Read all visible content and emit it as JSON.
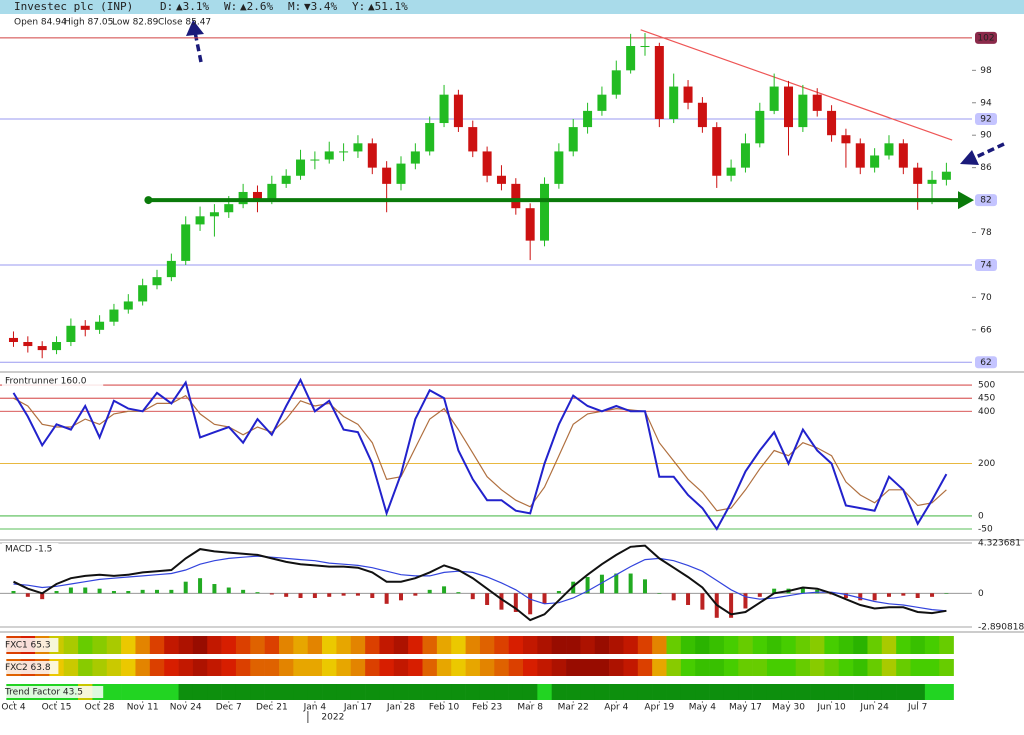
{
  "header": {
    "title": "Investec plc (INP)",
    "changes": [
      {
        "label": "D:",
        "value": "▲3.1%",
        "color": "#1a8a1a"
      },
      {
        "label": "W:",
        "value": "▲2.6%",
        "color": "#1a8a1a"
      },
      {
        "label": "M:",
        "value": "▼3.4%",
        "color": "#cc1111"
      },
      {
        "label": "Y:",
        "value": "▲51.1%",
        "color": "#1a8a1a"
      }
    ],
    "ohlc": [
      "Open 84.94",
      "High 87.05",
      "Low 82.89",
      "Close 85.47"
    ]
  },
  "chart_data": [
    {
      "type": "candlestick",
      "xlim": [
        -0.8,
        65.6
      ],
      "ylim": [
        60.8,
        104.7
      ],
      "yticks": [
        102,
        98,
        94,
        92,
        90,
        86,
        82,
        78,
        74,
        70,
        66,
        62
      ],
      "up_color": "#22bb22",
      "down_color": "#cc1111",
      "open": [
        65,
        64.5,
        64,
        63.5,
        64.5,
        66.5,
        66,
        67,
        68.5,
        69.5,
        71.5,
        72.5,
        74.5,
        79,
        80,
        80.5,
        81.5,
        83,
        82,
        84,
        85,
        87,
        87,
        88,
        88,
        89,
        86,
        84,
        86.5,
        88,
        91.5,
        95,
        91,
        88,
        85,
        84,
        81,
        77,
        84,
        88,
        91,
        93,
        95,
        98,
        101,
        101,
        92,
        96,
        94,
        91,
        85,
        86,
        89,
        93,
        96,
        91,
        95,
        93,
        90,
        89,
        86,
        87.5,
        89,
        86,
        84,
        84.5
      ],
      "high": [
        65.8,
        65.2,
        64.6,
        65.2,
        67.4,
        67.2,
        67.8,
        69.2,
        70.4,
        72.3,
        73.4,
        75.4,
        80,
        81.2,
        81.5,
        82.5,
        84,
        83.8,
        85,
        85.8,
        88.2,
        88,
        89.2,
        89,
        90,
        89.6,
        86.8,
        87.4,
        89,
        92.3,
        96.2,
        95.6,
        91.8,
        88.6,
        86.3,
        84.7,
        81.6,
        84.8,
        89,
        92,
        94,
        96,
        99.2,
        102.5,
        102.6,
        101.4,
        97.6,
        96.8,
        94.7,
        91.6,
        87,
        90.2,
        94,
        97.6,
        96.7,
        96.2,
        95.8,
        93.7,
        90.8,
        89.6,
        88.4,
        90,
        89.5,
        86.6,
        85.6,
        86.6
      ],
      "low": [
        63.9,
        63.2,
        62.5,
        63,
        64,
        65.2,
        65.5,
        66.5,
        68,
        69,
        71,
        72,
        74,
        78.2,
        77.5,
        79.8,
        81,
        80.5,
        81.5,
        83.5,
        84.5,
        85.8,
        86.5,
        86.8,
        87.2,
        85.2,
        80.5,
        83.2,
        85.8,
        87.5,
        91,
        90.4,
        87.3,
        84.2,
        83.2,
        80.2,
        74.6,
        76.3,
        83.4,
        87.4,
        90.2,
        92.4,
        94.5,
        97.6,
        99.8,
        91,
        91.5,
        93.2,
        90.3,
        83.5,
        84.3,
        85.4,
        88.5,
        92.6,
        87.5,
        90.4,
        92.3,
        89.2,
        86,
        85.2,
        85.4,
        87,
        85.2,
        80.8,
        81.5,
        83.8
      ],
      "close": [
        64.5,
        64,
        63.5,
        64.5,
        66.5,
        66,
        67,
        68.5,
        69.5,
        71.5,
        72.5,
        74.5,
        79,
        80,
        80.5,
        81.5,
        83,
        82,
        84,
        85,
        87,
        87,
        88,
        88,
        89,
        86,
        84,
        86.5,
        88,
        91.5,
        95,
        91,
        88,
        85,
        84,
        81,
        77,
        84,
        88,
        91,
        93,
        95,
        98,
        101,
        101,
        92,
        96,
        94,
        91,
        85,
        86,
        89,
        93,
        96,
        91,
        95,
        93,
        90,
        89,
        86,
        87.5,
        89,
        86,
        84,
        84.5,
        85.5
      ],
      "levels": [
        {
          "value": 102,
          "color": "#d04040",
          "label_bg": "#8b2a4a"
        },
        {
          "value": 92,
          "color": "#9a9af0",
          "label_bg": "#c4c4ff"
        },
        {
          "value": 82,
          "color": "#0a7a0a",
          "label_bg": "#c4c4ff",
          "width": 4
        },
        {
          "value": 74,
          "color": "#9a9af0",
          "label_bg": "#c4c4ff"
        },
        {
          "value": 62,
          "color": "#9a9af0",
          "label_bg": "#c4c4ff"
        }
      ],
      "trendline": {
        "x": [
          43.7,
          65.4
        ],
        "y": [
          103,
          89.4
        ],
        "color": "#ee5555"
      }
    },
    {
      "type": "line",
      "label": "Frontrunner 160.0",
      "ylim": [
        -92,
        550
      ],
      "yticks": [
        500,
        450,
        400,
        200,
        0,
        -50
      ],
      "tick_colors": [
        "#cc2222",
        "#cc2222",
        "#cc2222",
        "#e0a000",
        "#22aa22",
        "#22aa22"
      ],
      "series": [
        {
          "color": "#2222cc",
          "values": [
            470,
            380,
            270,
            350,
            330,
            420,
            300,
            440,
            410,
            400,
            470,
            430,
            510,
            300,
            320,
            340,
            280,
            370,
            310,
            420,
            520,
            400,
            440,
            330,
            320,
            200,
            10,
            160,
            370,
            480,
            450,
            250,
            140,
            60,
            60,
            20,
            10,
            200,
            350,
            460,
            420,
            400,
            420,
            400,
            400,
            150,
            150,
            80,
            30,
            -50,
            50,
            170,
            250,
            320,
            200,
            330,
            250,
            200,
            40,
            30,
            20,
            150,
            100,
            -30,
            60,
            160
          ]
        },
        {
          "color": "#b07040",
          "values": [
            450,
            420,
            350,
            340,
            340,
            370,
            350,
            390,
            400,
            400,
            430,
            430,
            460,
            390,
            350,
            340,
            310,
            340,
            320,
            370,
            440,
            420,
            430,
            380,
            350,
            280,
            140,
            150,
            260,
            370,
            410,
            330,
            240,
            150,
            100,
            60,
            35,
            110,
            230,
            350,
            390,
            400,
            410,
            405,
            400,
            280,
            210,
            140,
            90,
            20,
            30,
            100,
            180,
            250,
            230,
            280,
            260,
            230,
            130,
            80,
            50,
            100,
            100,
            40,
            50,
            100
          ]
        }
      ]
    },
    {
      "type": "line",
      "label": "MACD -1.5",
      "ylim": [
        -3.32,
        4.58
      ],
      "yticks": [
        4.323681,
        0,
        -2.890818
      ],
      "series": [
        {
          "color": "#111111",
          "values": [
            1.0,
            0.4,
            0.0,
            0.8,
            1.3,
            1.5,
            1.6,
            1.5,
            1.6,
            1.8,
            1.9,
            2.0,
            3.0,
            3.8,
            3.6,
            3.5,
            3.4,
            3.3,
            3.0,
            2.7,
            2.5,
            2.4,
            2.3,
            2.3,
            2.2,
            1.8,
            1.0,
            1.0,
            1.3,
            1.8,
            2.4,
            2.0,
            1.3,
            0.4,
            -0.5,
            -1.3,
            -2.3,
            -1.8,
            -0.6,
            0.6,
            1.6,
            2.5,
            3.3,
            4.0,
            4.1,
            3.0,
            2.2,
            1.4,
            0.5,
            -1.0,
            -1.8,
            -1.6,
            -0.8,
            0.0,
            0.2,
            0.5,
            0.4,
            0.0,
            -0.5,
            -1.0,
            -1.3,
            -1.2,
            -1.2,
            -1.6,
            -1.7,
            -1.5
          ]
        },
        {
          "color": "#3344dd",
          "values": [
            0.8,
            0.7,
            0.5,
            0.6,
            0.8,
            1.0,
            1.2,
            1.3,
            1.4,
            1.5,
            1.6,
            1.7,
            2.0,
            2.5,
            2.8,
            3.0,
            3.1,
            3.2,
            3.1,
            3.0,
            2.9,
            2.8,
            2.6,
            2.5,
            2.4,
            2.2,
            1.9,
            1.6,
            1.5,
            1.5,
            1.8,
            1.9,
            1.8,
            1.4,
            0.9,
            0.3,
            -0.5,
            -0.9,
            -0.8,
            -0.4,
            0.2,
            0.9,
            1.6,
            2.3,
            2.9,
            3.0,
            2.8,
            2.4,
            1.9,
            1.1,
            0.3,
            -0.3,
            -0.5,
            -0.4,
            -0.2,
            0.0,
            0.1,
            0.1,
            -0.1,
            -0.4,
            -0.7,
            -0.9,
            -1.0,
            -1.2,
            -1.4,
            -1.5
          ]
        }
      ],
      "histogram": {
        "up_color": "#22aa22",
        "down_color": "#bb2222",
        "values": [
          0.2,
          -0.3,
          -0.5,
          0.2,
          0.5,
          0.5,
          0.4,
          0.2,
          0.2,
          0.3,
          0.3,
          0.3,
          1.0,
          1.3,
          0.8,
          0.5,
          0.3,
          0.1,
          -0.1,
          -0.3,
          -0.4,
          -0.4,
          -0.3,
          -0.2,
          -0.2,
          -0.4,
          -0.9,
          -0.6,
          -0.2,
          0.3,
          0.6,
          0.1,
          -0.5,
          -1.0,
          -1.4,
          -1.6,
          -1.8,
          -0.9,
          0.2,
          1.0,
          1.4,
          1.6,
          1.7,
          1.7,
          1.2,
          0.0,
          -0.6,
          -1.0,
          -1.4,
          -2.1,
          -2.1,
          -1.3,
          -0.3,
          0.4,
          0.4,
          0.5,
          0.3,
          -0.1,
          -0.4,
          -0.6,
          -0.6,
          -0.3,
          -0.2,
          -0.4,
          -0.3,
          0.0
        ]
      }
    },
    {
      "type": "heatmap",
      "rows": [
        {
          "label": "FXC1 65.3",
          "scale": "gradient",
          "values": [
            30,
            25,
            40,
            55,
            60,
            70,
            65,
            60,
            50,
            40,
            30,
            20,
            15,
            10,
            20,
            25,
            30,
            35,
            30,
            40,
            45,
            40,
            50,
            45,
            40,
            30,
            20,
            15,
            25,
            35,
            45,
            50,
            40,
            35,
            30,
            25,
            20,
            15,
            10,
            10,
            15,
            10,
            15,
            20,
            30,
            40,
            70,
            80,
            85,
            80,
            75,
            70,
            75,
            80,
            75,
            70,
            65,
            75,
            80,
            85,
            70,
            60,
            75,
            80,
            75,
            70
          ]
        },
        {
          "label": "FXC2 63.8",
          "scale": "gradient",
          "values": [
            35,
            30,
            35,
            50,
            55,
            65,
            60,
            55,
            50,
            40,
            30,
            25,
            20,
            15,
            20,
            25,
            30,
            35,
            35,
            40,
            45,
            45,
            50,
            45,
            40,
            30,
            25,
            20,
            25,
            35,
            45,
            50,
            45,
            40,
            35,
            30,
            25,
            20,
            15,
            10,
            10,
            10,
            15,
            20,
            30,
            45,
            65,
            75,
            80,
            80,
            75,
            70,
            70,
            75,
            75,
            70,
            65,
            70,
            75,
            80,
            70,
            60,
            70,
            75,
            75,
            70
          ]
        },
        {
          "label": "Trend Factor 43.5",
          "scale": "steps",
          "values": [
            60,
            60,
            60,
            60,
            60,
            40,
            60,
            60,
            60,
            60,
            60,
            60,
            80,
            80,
            80,
            80,
            80,
            80,
            80,
            80,
            80,
            80,
            80,
            80,
            80,
            80,
            80,
            80,
            80,
            80,
            80,
            80,
            80,
            80,
            80,
            80,
            80,
            60,
            80,
            80,
            80,
            80,
            80,
            80,
            80,
            80,
            80,
            80,
            80,
            80,
            80,
            80,
            80,
            80,
            80,
            80,
            80,
            80,
            80,
            80,
            80,
            80,
            80,
            80,
            60,
            60
          ]
        }
      ],
      "xticks": [
        {
          "value": 0,
          "label": "Oct 4"
        },
        {
          "value": 3,
          "label": "Oct 15"
        },
        {
          "value": 6,
          "label": "Oct 28"
        },
        {
          "value": 9,
          "label": "Nov 11"
        },
        {
          "value": 12,
          "label": "Nov 24"
        },
        {
          "value": 15,
          "label": "Dec 7"
        },
        {
          "value": 18,
          "label": "Dec 21"
        },
        {
          "value": 21,
          "label": "Jan 4"
        },
        {
          "value": 24,
          "label": "Jan 17"
        },
        {
          "value": 27,
          "label": "Jan 28"
        },
        {
          "value": 30,
          "label": "Feb 10"
        },
        {
          "value": 33,
          "label": "Feb 23"
        },
        {
          "value": 36,
          "label": "Mar 8"
        },
        {
          "value": 39,
          "label": "Mar 22"
        },
        {
          "value": 42,
          "label": "Apr 4"
        },
        {
          "value": 45,
          "label": "Apr 19"
        },
        {
          "value": 48,
          "label": "May 4"
        },
        {
          "value": 51,
          "label": "May 17"
        },
        {
          "value": 54,
          "label": "May 30"
        },
        {
          "value": 57,
          "label": "Jun 10"
        },
        {
          "value": 60,
          "label": "Jun 24"
        },
        {
          "value": 63,
          "label": "Jul 7"
        }
      ],
      "year_label": "2022"
    }
  ]
}
